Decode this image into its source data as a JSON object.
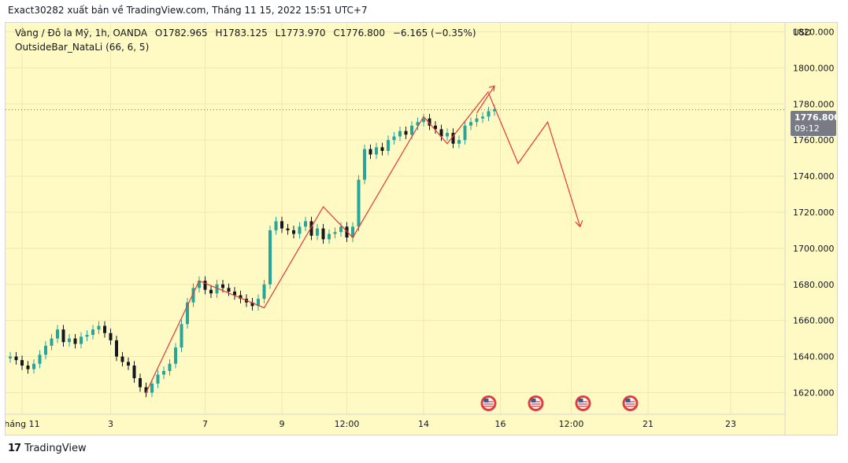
{
  "header": {
    "caption": "Exact30282 xuất bản về TradingView.com, Tháng 11 15, 2022 15:51 UTC+7"
  },
  "legend": {
    "symbol": "Vàng / Đô la Mỹ, 1h, OANDA",
    "open": "O1782.965",
    "high": "H1783.125",
    "low": "L1773.970",
    "close": "C1776.800",
    "change": "−6.165 (−0.35%)",
    "indicator": "OutsideBar_NataLi (66, 6, 5)"
  },
  "price_axis": {
    "currency": "USD",
    "last_price": "1776.800",
    "countdown": "09:12"
  },
  "footer": {
    "brand": "TradingView",
    "logo_text": "17"
  },
  "colors": {
    "background": "#fff9c4",
    "up_candle": "#26a69a",
    "down_candle": "#131722",
    "zigzag": "#e53935",
    "grid": "#efe8b0",
    "price_line": "#b05050",
    "event_badge": "#e03e3e"
  },
  "chart_data": {
    "type": "candlestick",
    "title": "Vàng / Đô la Mỹ, 1h, OANDA",
    "xlabel": "",
    "ylabel": "",
    "ylim": [
      1608,
      1825
    ],
    "xlim": [
      0,
      132
    ],
    "grid": true,
    "y_ticks": [
      1620,
      1640,
      1660,
      1680,
      1700,
      1720,
      1740,
      1760,
      1780,
      1800,
      1820
    ],
    "y_tick_labels": [
      "1620.000",
      "1640.000",
      "1660.000",
      "1680.000",
      "1700.000",
      "1720.000",
      "1740.000",
      "1760.000",
      "1780.000",
      "1800.000",
      "1820.000"
    ],
    "x_ticks": [
      {
        "label": "háng 11",
        "x": 2
      },
      {
        "label": "3",
        "x": 17
      },
      {
        "label": "7",
        "x": 33
      },
      {
        "label": "9",
        "x": 46
      },
      {
        "label": "12:00",
        "x": 57
      },
      {
        "label": "14",
        "x": 70
      },
      {
        "label": "16",
        "x": 83
      },
      {
        "label": "12:00",
        "x": 95
      },
      {
        "label": "21",
        "x": 108
      },
      {
        "label": "23",
        "x": 122
      }
    ],
    "close_prices": [
      1640,
      1638,
      1635,
      1633,
      1636,
      1641,
      1646,
      1650,
      1655,
      1648,
      1650,
      1647,
      1651,
      1652,
      1655,
      1657,
      1653,
      1649,
      1640,
      1637,
      1635,
      1628,
      1623,
      1620,
      1625,
      1630,
      1632,
      1636,
      1645,
      1658,
      1670,
      1678,
      1682,
      1677,
      1675,
      1680,
      1678,
      1676,
      1674,
      1672,
      1670,
      1668,
      1672,
      1680,
      1710,
      1715,
      1711,
      1710,
      1708,
      1712,
      1715,
      1707,
      1711,
      1705,
      1708,
      1709,
      1712,
      1706,
      1712,
      1738,
      1755,
      1752,
      1756,
      1754,
      1760,
      1762,
      1765,
      1763,
      1768,
      1770,
      1772,
      1768,
      1766,
      1762,
      1764,
      1758,
      1760,
      1768,
      1770,
      1772,
      1773,
      1776,
      1777
    ],
    "last_price": 1776.8,
    "series": [
      {
        "name": "OutsideBar_NataLi (66, 6, 5)",
        "type": "zigzag",
        "points": [
          [
            23,
            1620
          ],
          [
            32,
            1682
          ],
          [
            43,
            1667
          ],
          [
            53,
            1723
          ],
          [
            58,
            1706
          ],
          [
            70,
            1773
          ],
          [
            74,
            1758
          ],
          [
            81,
            1787
          ]
        ]
      },
      {
        "name": "projection",
        "type": "arrow-path",
        "points": [
          [
            81,
            1786
          ],
          [
            86,
            1747
          ],
          [
            91,
            1770
          ],
          [
            96.5,
            1712
          ]
        ]
      },
      {
        "name": "projection-arrow-up",
        "type": "arrow-tip",
        "points": [
          [
            79,
            1775
          ],
          [
            82,
            1790
          ]
        ]
      }
    ],
    "event_markers": [
      {
        "x": 81
      },
      {
        "x": 89
      },
      {
        "x": 97
      },
      {
        "x": 105
      }
    ]
  }
}
